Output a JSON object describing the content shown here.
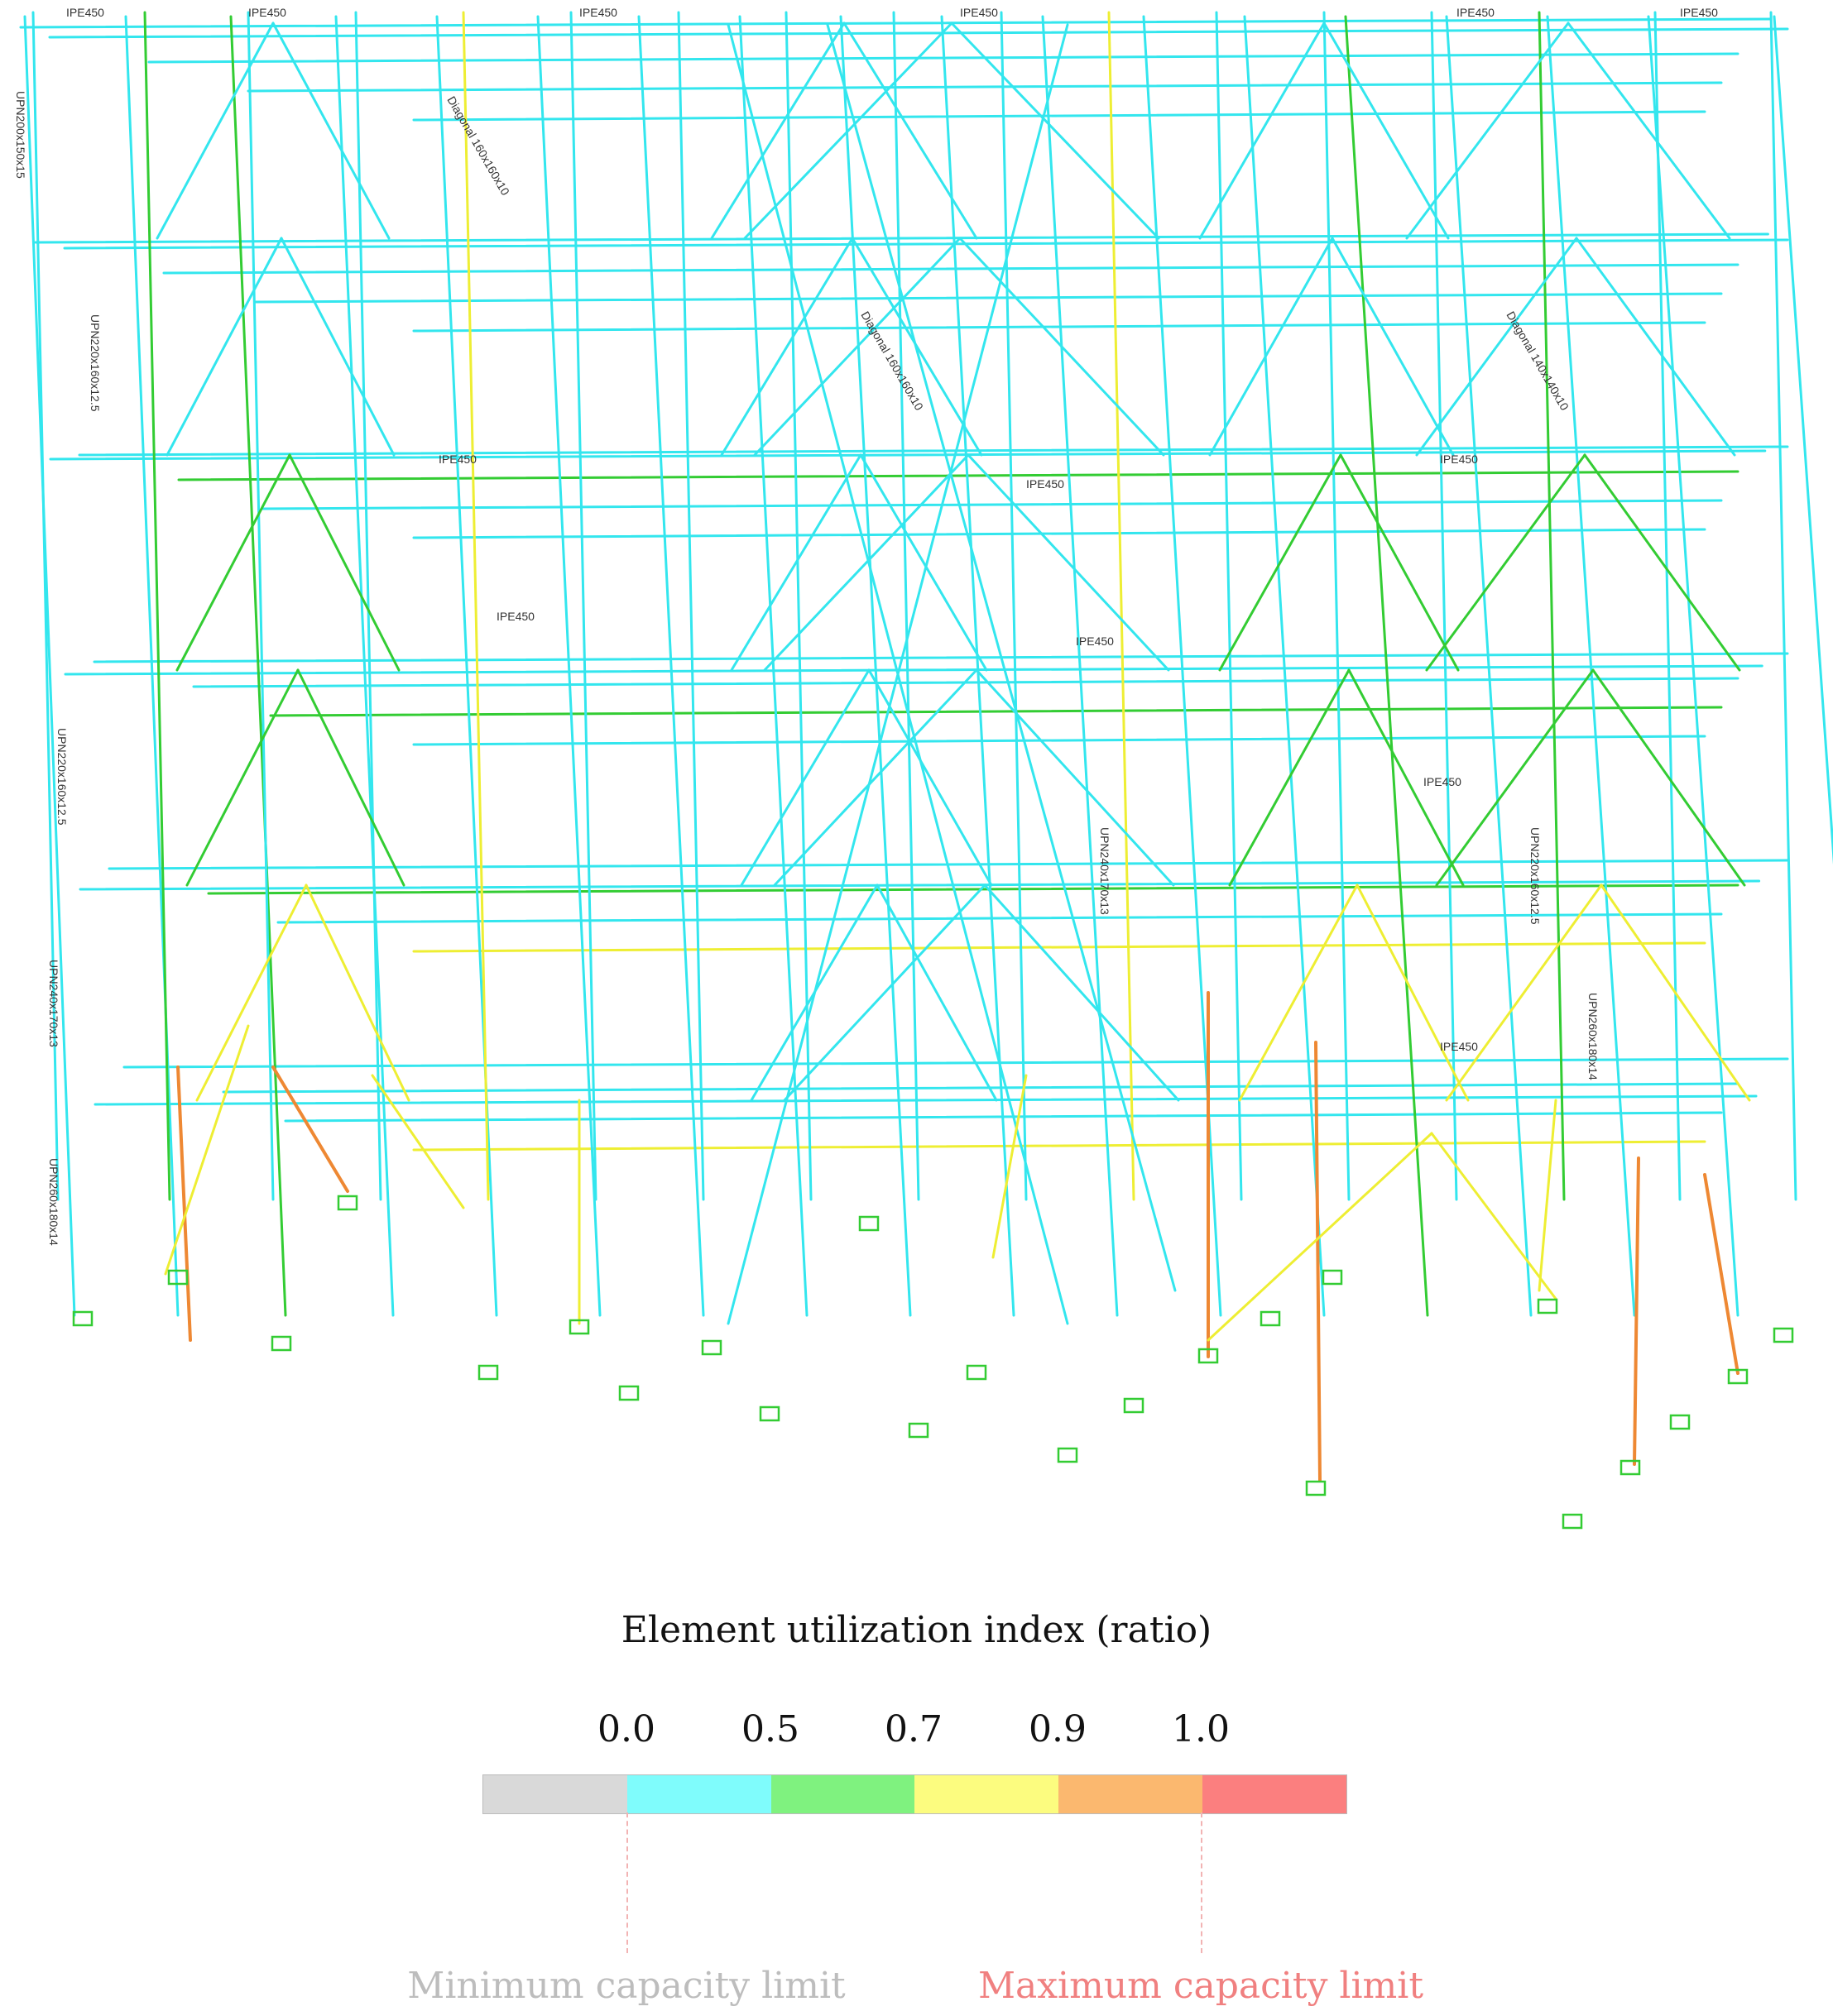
{
  "legend": {
    "title": "Element utilization index (ratio)",
    "ticks": [
      "0.0",
      "0.5",
      "0.7",
      "0.9",
      "1.0"
    ],
    "segments": [
      {
        "name": "below-0.0",
        "color": "#d9d9d9"
      },
      {
        "name": "0.0-0.5",
        "color": "#7ffcfc"
      },
      {
        "name": "0.5-0.7",
        "color": "#7ff27f"
      },
      {
        "name": "0.7-0.9",
        "color": "#fcfc7f"
      },
      {
        "name": "0.9-1.0",
        "color": "#fbb86f"
      },
      {
        "name": "above-1.0",
        "color": "#fb7f7f"
      }
    ],
    "min_limit_label": "Minimum capacity limit",
    "max_limit_label": "Maximum capacity limit",
    "min_limit_color": "#bdbdbd",
    "max_limit_color": "#f08080"
  },
  "frame": {
    "colors": {
      "cyan": "#33e6ee",
      "green": "#33cc33",
      "yellow": "#eeee33",
      "orange": "#ee8833",
      "support": "#33cc33"
    },
    "member_labels": [
      "IPE450",
      "UPN200x150x15",
      "Diagonal 160x160x10",
      "UPN220x160x12.5",
      "UPN240x170x13",
      "UPN260x180x14",
      "Diagonal 140x140x10"
    ]
  }
}
